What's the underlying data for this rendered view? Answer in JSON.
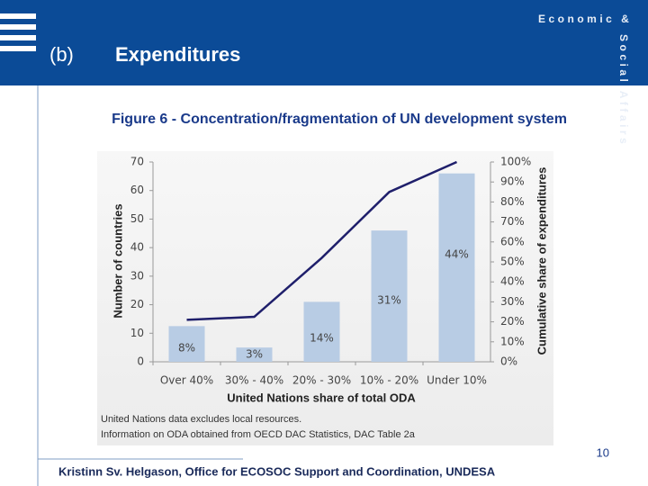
{
  "header": {
    "label": "(b)",
    "title": "Expenditures",
    "brand_top": "Economic &",
    "brand_side": "Social Affairs"
  },
  "chart_data": {
    "type": "bar",
    "title": "Figure 6 - Concentration/fragmentation of UN development system",
    "x_label": "United Nations share of total ODA",
    "y_label": "Number of countries",
    "y2_label": "Cumulative share of expenditures",
    "categories": [
      "Over 40%",
      "30% - 40%",
      "20% - 30%",
      "10% - 20%",
      "Under 10%"
    ],
    "series": [
      {
        "type": "bar",
        "color": "#b8cce4",
        "values": [
          12.5,
          5,
          21,
          46,
          66
        ]
      },
      {
        "type": "line",
        "axis": "y2",
        "color": "#1f1f6b",
        "values": [
          21,
          22.5,
          52,
          85,
          100
        ]
      }
    ],
    "bar_labels": [
      "8%",
      "3%",
      "14%",
      "31%",
      "44%"
    ],
    "ylim": [
      0,
      70
    ],
    "yticks": [
      0,
      10,
      20,
      30,
      40,
      50,
      60,
      70
    ],
    "y2lim": [
      0,
      100
    ],
    "y2ticks": [
      {
        "value": 0,
        "label": "0%"
      },
      {
        "value": 10,
        "label": "10%"
      },
      {
        "value": 20,
        "label": "20%"
      },
      {
        "value": 30,
        "label": "30%"
      },
      {
        "value": 40,
        "label": "40%"
      },
      {
        "value": 50,
        "label": "50%"
      },
      {
        "value": 60,
        "label": "60%"
      },
      {
        "value": 70,
        "label": "70%"
      },
      {
        "value": 80,
        "label": "80%"
      },
      {
        "value": 90,
        "label": "90%"
      },
      {
        "value": 100,
        "label": "100%"
      }
    ],
    "notes": [
      "United Nations data excludes local resources.",
      "Information on ODA obtained from OECD DAC Statistics, DAC Table 2a"
    ]
  },
  "footer": {
    "page": "10",
    "credit": "Kristinn Sv. Helgason, Office for ECOSOC Support and Coordination, UNDESA"
  }
}
